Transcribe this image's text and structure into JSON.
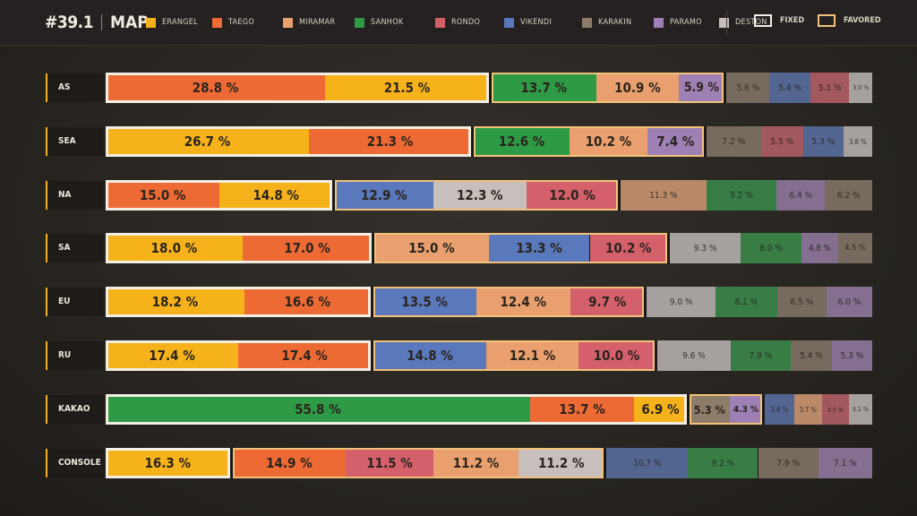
{
  "header": {
    "patch": "#39.1",
    "title": "MAP",
    "legend": [
      {
        "name": "ERANGEL",
        "color": "#f6b21b"
      },
      {
        "name": "TAEGO",
        "color": "#ee6a35"
      },
      {
        "name": "MIRAMAR",
        "color": "#e9a06e"
      },
      {
        "name": "SANHOK",
        "color": "#2f9a45"
      },
      {
        "name": "RONDO",
        "color": "#d4606b"
      },
      {
        "name": "VIKENDI",
        "color": "#5a78bc"
      },
      {
        "name": "KARAKIN",
        "color": "#8e7c6a"
      },
      {
        "name": "PARAMO",
        "color": "#9f80b4"
      },
      {
        "name": "DESTON",
        "color": "#c6bfbb"
      }
    ],
    "status_keys": {
      "fixed": "FIXED",
      "favored": "FAVORED"
    }
  },
  "chart_data": {
    "type": "bar",
    "stacked": true,
    "orientation": "horizontal",
    "normalized": true,
    "colors": {
      "ERANGEL": "#f6b21b",
      "TAEGO": "#ee6a35",
      "MIRAMAR": "#e9a06e",
      "SANHOK": "#2f9a45",
      "RONDO": "#d4606b",
      "VIKENDI": "#5a78bc",
      "KARAKIN": "#8e7c6a",
      "PARAMO": "#9f80b4",
      "DESTON": "#c6bfbb"
    },
    "categories": [
      "AS",
      "SEA",
      "NA",
      "SA",
      "EU",
      "RU",
      "KAKAO",
      "CONSOLE"
    ],
    "rows": [
      {
        "region": "AS",
        "fixed": 2,
        "favored": 5,
        "segments": [
          {
            "map": "TAEGO",
            "value": 28.8
          },
          {
            "map": "ERANGEL",
            "value": 21.5
          },
          {
            "map": "SANHOK",
            "value": 13.7
          },
          {
            "map": "MIRAMAR",
            "value": 10.9
          },
          {
            "map": "PARAMO",
            "value": 5.9
          },
          {
            "map": "KARAKIN",
            "value": 5.6
          },
          {
            "map": "VIKENDI",
            "value": 5.4
          },
          {
            "map": "RONDO",
            "value": 5.1
          },
          {
            "map": "DESTON",
            "value": 3.0
          }
        ]
      },
      {
        "region": "SEA",
        "fixed": 2,
        "favored": 5,
        "segments": [
          {
            "map": "ERANGEL",
            "value": 26.7
          },
          {
            "map": "TAEGO",
            "value": 21.3
          },
          {
            "map": "SANHOK",
            "value": 12.6
          },
          {
            "map": "MIRAMAR",
            "value": 10.2
          },
          {
            "map": "PARAMO",
            "value": 7.4
          },
          {
            "map": "KARAKIN",
            "value": 7.2
          },
          {
            "map": "RONDO",
            "value": 5.5
          },
          {
            "map": "VIKENDI",
            "value": 5.3
          },
          {
            "map": "DESTON",
            "value": 3.8
          }
        ]
      },
      {
        "region": "NA",
        "fixed": 2,
        "favored": 5,
        "segments": [
          {
            "map": "TAEGO",
            "value": 15.0
          },
          {
            "map": "ERANGEL",
            "value": 14.8
          },
          {
            "map": "VIKENDI",
            "value": 12.9
          },
          {
            "map": "DESTON",
            "value": 12.3
          },
          {
            "map": "RONDO",
            "value": 12.0
          },
          {
            "map": "MIRAMAR",
            "value": 11.3
          },
          {
            "map": "SANHOK",
            "value": 9.2
          },
          {
            "map": "PARAMO",
            "value": 6.4
          },
          {
            "map": "KARAKIN",
            "value": 6.2
          }
        ]
      },
      {
        "region": "SA",
        "fixed": 2,
        "favored": 5,
        "segments": [
          {
            "map": "ERANGEL",
            "value": 18.0
          },
          {
            "map": "TAEGO",
            "value": 17.0
          },
          {
            "map": "MIRAMAR",
            "value": 15.0
          },
          {
            "map": "VIKENDI",
            "value": 13.3
          },
          {
            "map": "RONDO",
            "value": 10.2
          },
          {
            "map": "DESTON",
            "value": 9.3
          },
          {
            "map": "SANHOK",
            "value": 8.0
          },
          {
            "map": "PARAMO",
            "value": 4.8
          },
          {
            "map": "KARAKIN",
            "value": 4.5
          }
        ]
      },
      {
        "region": "EU",
        "fixed": 2,
        "favored": 5,
        "segments": [
          {
            "map": "ERANGEL",
            "value": 18.2
          },
          {
            "map": "TAEGO",
            "value": 16.6
          },
          {
            "map": "VIKENDI",
            "value": 13.5
          },
          {
            "map": "MIRAMAR",
            "value": 12.4
          },
          {
            "map": "RONDO",
            "value": 9.7
          },
          {
            "map": "DESTON",
            "value": 9.0
          },
          {
            "map": "SANHOK",
            "value": 8.1
          },
          {
            "map": "KARAKIN",
            "value": 6.5
          },
          {
            "map": "PARAMO",
            "value": 6.0
          }
        ]
      },
      {
        "region": "RU",
        "fixed": 2,
        "favored": 5,
        "segments": [
          {
            "map": "ERANGEL",
            "value": 17.4
          },
          {
            "map": "TAEGO",
            "value": 17.4
          },
          {
            "map": "VIKENDI",
            "value": 14.8
          },
          {
            "map": "MIRAMAR",
            "value": 12.1
          },
          {
            "map": "RONDO",
            "value": 10.0
          },
          {
            "map": "DESTON",
            "value": 9.6
          },
          {
            "map": "SANHOK",
            "value": 7.9
          },
          {
            "map": "KARAKIN",
            "value": 5.4
          },
          {
            "map": "PARAMO",
            "value": 5.3
          }
        ]
      },
      {
        "region": "KAKAO",
        "fixed": 3,
        "favored": 5,
        "segments": [
          {
            "map": "SANHOK",
            "value": 55.8
          },
          {
            "map": "TAEGO",
            "value": 13.7
          },
          {
            "map": "ERANGEL",
            "value": 6.9
          },
          {
            "map": "KARAKIN",
            "value": 5.3
          },
          {
            "map": "PARAMO",
            "value": 4.3
          },
          {
            "map": "VIKENDI",
            "value": 3.8
          },
          {
            "map": "MIRAMAR",
            "value": 3.7
          },
          {
            "map": "RONDO",
            "value": 3.5
          },
          {
            "map": "DESTON",
            "value": 3.1
          }
        ]
      },
      {
        "region": "CONSOLE",
        "fixed": 1,
        "favored": 5,
        "segments": [
          {
            "map": "ERANGEL",
            "value": 16.3
          },
          {
            "map": "TAEGO",
            "value": 14.9
          },
          {
            "map": "RONDO",
            "value": 11.5
          },
          {
            "map": "MIRAMAR",
            "value": 11.2
          },
          {
            "map": "DESTON",
            "value": 11.2
          },
          {
            "map": "VIKENDI",
            "value": 10.7
          },
          {
            "map": "SANHOK",
            "value": 9.2
          },
          {
            "map": "KARAKIN",
            "value": 7.9
          },
          {
            "map": "PARAMO",
            "value": 7.1
          }
        ]
      }
    ]
  }
}
